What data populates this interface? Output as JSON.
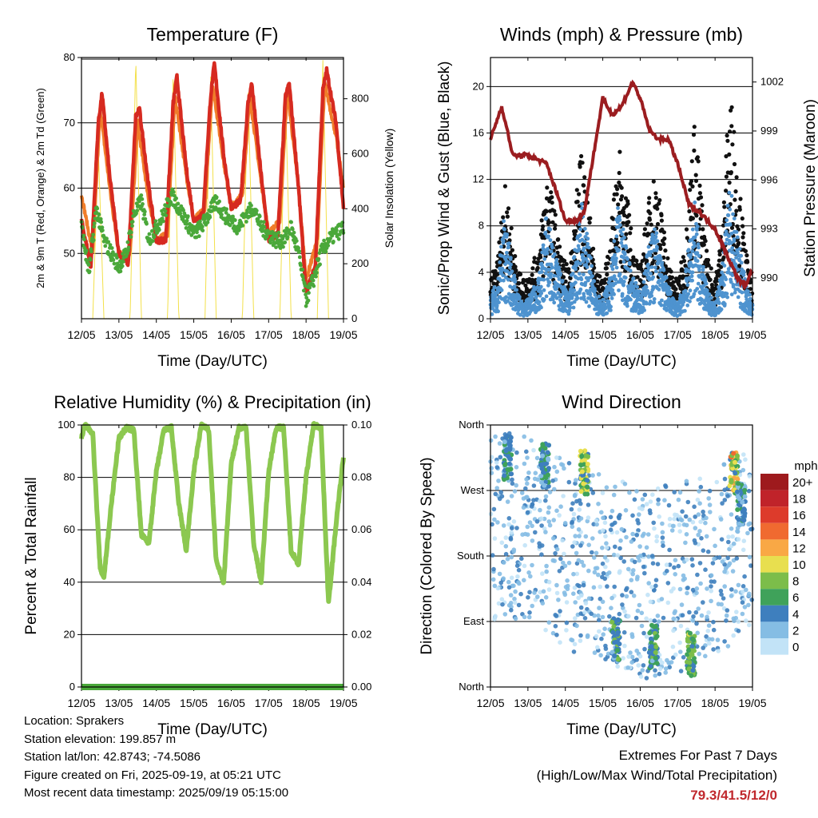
{
  "panels": {
    "temperature": {
      "title": "Temperature (F)",
      "ylabel_left": "2m & 9m T (Red, Orange) & 2m Td (Green)",
      "ylabel_right": "Solar Insolation (Yellow)",
      "xlabel": "Time (Day/UTC)"
    },
    "winds": {
      "title": "Winds (mph) & Pressure (mb)",
      "ylabel_left": "Sonic/Prop Wind & Gust (Blue, Black)",
      "ylabel_right": "Station Pressure (Maroon)",
      "xlabel": "Time (Day/UTC)"
    },
    "humidity": {
      "title": "Relative Humidity (%) & Precipitation (in)",
      "ylabel_left": "Percent & Total Rainfall",
      "xlabel": "Time (Day/UTC)"
    },
    "direction": {
      "title": "Wind Direction",
      "ylabel_left": "Direction (Colored By Speed)",
      "xlabel": "Time (Day/UTC)",
      "legend_title": "mph",
      "legend_labels": [
        "20+",
        "18",
        "16",
        "14",
        "12",
        "10",
        "8",
        "6",
        "4",
        "2",
        "0"
      ],
      "legend_colors": [
        "#9e1a1d",
        "#c0232a",
        "#dd3b2b",
        "#f06a30",
        "#f9a845",
        "#e8df4f",
        "#7cbd4a",
        "#3fa25a",
        "#3e7fbe",
        "#85bde4",
        "#c2e3f7"
      ]
    }
  },
  "info": {
    "location": "Location: Sprakers",
    "elevation": "Station elevation: 199.857 m",
    "latlon": "Station lat/lon: 42.8743; -74.5086",
    "created": "Figure created on Fri, 2025-09-19, at 05:21 UTC",
    "recent": "Most recent data timestamp: 2025/09/19 05:15:00"
  },
  "extremes": {
    "line1": "Extremes For Past 7 Days",
    "line2": "(High/Low/Max Wind/Total Precipitation)",
    "values": "79.3/41.5/12/0"
  },
  "chart_data": [
    {
      "type": "line",
      "title": "Temperature (F)",
      "xlabel": "Time (Day/UTC)",
      "ylabel": "2m & 9m T (Red, Orange) & 2m Td (Green)",
      "y2label": "Solar Insolation (Yellow)",
      "x_ticks": [
        "12/05",
        "13/05",
        "14/05",
        "15/05",
        "16/05",
        "17/05",
        "18/05",
        "19/05"
      ],
      "xlim": [
        0,
        7
      ],
      "ylim": [
        40,
        80
      ],
      "y_ticks": [
        50,
        60,
        70,
        80
      ],
      "y2lim": [
        0,
        950
      ],
      "y2_ticks": [
        0,
        200,
        400,
        600,
        800
      ],
      "grid": true,
      "series": [
        {
          "name": "2m T",
          "color": "#d62a20",
          "x": [
            0,
            0.25,
            0.45,
            0.55,
            0.75,
            1.0,
            1.25,
            1.45,
            1.55,
            1.8,
            2.0,
            2.25,
            2.45,
            2.55,
            2.8,
            3.0,
            3.25,
            3.45,
            3.55,
            3.8,
            4.0,
            4.25,
            4.45,
            4.55,
            4.8,
            5.0,
            5.25,
            5.45,
            5.55,
            5.8,
            6.0,
            6.25,
            6.45,
            6.55,
            6.8,
            7.0
          ],
          "values": [
            55,
            48,
            70,
            74.5,
            62,
            50,
            48.5,
            71,
            72,
            60,
            52,
            52,
            73,
            77,
            63,
            55,
            56,
            74,
            79,
            65,
            57,
            58,
            73,
            76,
            62,
            52,
            53,
            74,
            76,
            60,
            44,
            48,
            75,
            78,
            70,
            57
          ]
        },
        {
          "name": "9m T",
          "color": "#f07d2a",
          "x": [
            0,
            0.3,
            0.5,
            0.8,
            1.0,
            1.3,
            1.5,
            1.8,
            2.0,
            2.3,
            2.5,
            2.8,
            3.0,
            3.3,
            3.5,
            3.8,
            4.0,
            4.3,
            4.5,
            4.8,
            5.0,
            5.3,
            5.5,
            5.8,
            6.0,
            6.3,
            6.5,
            6.8,
            7.0
          ],
          "values": [
            59,
            50,
            72,
            58,
            50,
            50,
            70,
            58,
            52,
            53,
            74,
            62,
            55,
            57,
            76,
            64,
            57,
            59,
            74,
            61,
            53,
            55,
            75,
            60,
            46,
            52,
            76,
            68,
            60
          ]
        },
        {
          "name": "2m Td",
          "color": "#4aa83a",
          "x": [
            0,
            0.2,
            0.4,
            0.6,
            0.8,
            1.0,
            1.2,
            1.4,
            1.6,
            1.8,
            2.0,
            2.2,
            2.4,
            2.6,
            2.8,
            3.0,
            3.2,
            3.4,
            3.6,
            3.8,
            4.0,
            4.2,
            4.4,
            4.6,
            4.8,
            5.0,
            5.2,
            5.4,
            5.6,
            5.8,
            6.0,
            6.2,
            6.4,
            6.6,
            6.8,
            7.0
          ],
          "values": [
            54,
            47,
            57,
            52,
            50,
            48,
            50,
            56,
            58,
            52,
            54,
            56,
            59,
            57,
            55,
            53,
            54,
            56,
            58,
            56,
            55,
            54,
            56,
            57,
            54,
            53,
            52,
            52,
            54,
            50,
            43,
            46,
            50,
            52,
            53,
            54
          ]
        },
        {
          "name": "Solar Insolation",
          "color": "#f3e04a",
          "axis": "y2",
          "x": [
            0.3,
            0.45,
            0.6,
            1.3,
            1.45,
            1.6,
            2.3,
            2.45,
            2.6,
            3.3,
            3.45,
            3.6,
            4.3,
            4.45,
            4.6,
            5.3,
            5.45,
            5.6,
            6.3,
            6.45,
            6.6
          ],
          "values": [
            0,
            620,
            0,
            0,
            950,
            0,
            0,
            900,
            0,
            0,
            880,
            0,
            0,
            850,
            0,
            0,
            820,
            0,
            0,
            940,
            0
          ]
        }
      ]
    },
    {
      "type": "scatter",
      "title": "Winds (mph) & Pressure (mb)",
      "xlabel": "Time (Day/UTC)",
      "ylabel": "Sonic/Prop Wind & Gust (Blue, Black)",
      "y2label": "Station Pressure (Maroon)",
      "x_ticks": [
        "12/05",
        "13/05",
        "14/05",
        "15/05",
        "16/05",
        "17/05",
        "18/05",
        "19/05"
      ],
      "xlim": [
        0,
        7
      ],
      "ylim": [
        0,
        22.5
      ],
      "y_ticks": [
        0,
        4,
        8,
        12,
        16,
        20
      ],
      "y2lim": [
        987.5,
        1003.5
      ],
      "y2_ticks": [
        990,
        993,
        996,
        999,
        1002
      ],
      "grid": true,
      "series": [
        {
          "name": "Wind (Blue)",
          "color": "#4e93cf",
          "x": [
            0,
            0.2,
            0.35,
            0.5,
            0.7,
            0.9,
            1.1,
            1.3,
            1.5,
            1.7,
            1.9,
            2.1,
            2.3,
            2.45,
            2.6,
            2.8,
            3.0,
            3.2,
            3.4,
            3.6,
            3.8,
            4.0,
            4.2,
            4.4,
            4.6,
            4.8,
            5.0,
            5.2,
            5.45,
            5.6,
            5.8,
            6.0,
            6.2,
            6.4,
            6.6,
            6.8,
            7.0
          ],
          "values": [
            1.5,
            3,
            7.5,
            5.5,
            2,
            1,
            2,
            3,
            8,
            5,
            3,
            2,
            6,
            8.5,
            6,
            2,
            1.5,
            3,
            8,
            6,
            3,
            2,
            5,
            7,
            4,
            2,
            1,
            3,
            9,
            5,
            2,
            1,
            4,
            10,
            6,
            3,
            1
          ]
        },
        {
          "name": "Gust (Black)",
          "color": "#111111",
          "x": [
            0,
            0.2,
            0.35,
            0.5,
            0.7,
            0.9,
            1.1,
            1.3,
            1.5,
            1.7,
            1.9,
            2.1,
            2.3,
            2.45,
            2.6,
            2.8,
            3.0,
            3.2,
            3.4,
            3.6,
            3.8,
            4.0,
            4.2,
            4.4,
            4.6,
            4.8,
            5.0,
            5.2,
            5.45,
            5.6,
            5.8,
            6.0,
            6.2,
            6.4,
            6.6,
            6.8,
            7.0
          ],
          "values": [
            3,
            5,
            11,
            9,
            4,
            3,
            4,
            6,
            12,
            9,
            5,
            4,
            10,
            14,
            10,
            4,
            3,
            6,
            14,
            11,
            6,
            4,
            9,
            12,
            8,
            4,
            3,
            6,
            16,
            11,
            5,
            3,
            8,
            19,
            12,
            6,
            2
          ]
        },
        {
          "name": "Station Pressure",
          "color": "#9b1d20",
          "axis": "y2",
          "x": [
            0,
            0.3,
            0.6,
            1.0,
            1.5,
            1.8,
            2.0,
            2.3,
            2.5,
            2.75,
            3.0,
            3.25,
            3.5,
            3.8,
            4.0,
            4.25,
            4.5,
            4.75,
            5.0,
            5.3,
            5.6,
            6.0,
            6.3,
            6.6,
            6.8,
            7.0
          ],
          "values": [
            998.5,
            1000.5,
            997.5,
            997.5,
            997,
            995,
            993.5,
            993.5,
            994,
            997.5,
            1001,
            1000,
            1000.5,
            1002,
            1001,
            999,
            998.5,
            998.5,
            997,
            994.5,
            994,
            993,
            991.5,
            990,
            989.5,
            990.5
          ]
        }
      ]
    },
    {
      "type": "line",
      "title": "Relative Humidity (%) & Precipitation (in)",
      "xlabel": "Time (Day/UTC)",
      "ylabel": "Percent & Total Rainfall",
      "x_ticks": [
        "12/05",
        "13/05",
        "14/05",
        "15/05",
        "16/05",
        "17/05",
        "18/05",
        "19/05"
      ],
      "xlim": [
        0,
        7
      ],
      "ylim": [
        0,
        100
      ],
      "y_ticks": [
        0,
        20,
        40,
        60,
        80,
        100
      ],
      "y2lim": [
        0,
        0.1
      ],
      "y2_ticks": [
        "0.00",
        "0.02",
        "0.04",
        "0.06",
        "0.08",
        "0.10"
      ],
      "grid": true,
      "series": [
        {
          "name": "RH",
          "color": "#8cc850",
          "x": [
            0,
            0.1,
            0.3,
            0.5,
            0.6,
            0.8,
            1.0,
            1.2,
            1.4,
            1.6,
            1.8,
            2.0,
            2.2,
            2.4,
            2.6,
            2.8,
            3.0,
            3.2,
            3.4,
            3.6,
            3.8,
            4.0,
            4.2,
            4.4,
            4.6,
            4.8,
            5.0,
            5.2,
            5.4,
            5.6,
            5.8,
            6.0,
            6.2,
            6.4,
            6.6,
            6.8,
            7.0
          ],
          "values": [
            95,
            100,
            97,
            45,
            42,
            70,
            95,
            99,
            98,
            58,
            55,
            82,
            98,
            99,
            70,
            52,
            82,
            100,
            98,
            48,
            40,
            85,
            99,
            99,
            55,
            40,
            82,
            99,
            99,
            52,
            47,
            80,
            100,
            99,
            32,
            62,
            88
          ]
        },
        {
          "name": "Total Precipitation",
          "color": "#4aa83a",
          "axis": "y2",
          "x": [
            0,
            7
          ],
          "values": [
            0,
            0
          ]
        }
      ]
    },
    {
      "type": "scatter",
      "title": "Wind Direction",
      "xlabel": "Time (Day/UTC)",
      "ylabel": "Direction (Colored By Speed)",
      "x_ticks": [
        "12/05",
        "13/05",
        "14/05",
        "15/05",
        "16/05",
        "17/05",
        "18/05",
        "19/05"
      ],
      "xlim": [
        0,
        7
      ],
      "ylim": [
        0,
        360
      ],
      "y_ticks": [
        "North",
        "East",
        "South",
        "West",
        "North"
      ],
      "legend_title": "mph",
      "legend": [
        "20+",
        "18",
        "16",
        "14",
        "12",
        "10",
        "8",
        "6",
        "4",
        "2",
        "0"
      ],
      "grid": true,
      "series": [
        {
          "name": "Direction",
          "x": [
            0.4,
            0.5,
            0.6,
            0.7,
            1.3,
            1.4,
            1.5,
            2.4,
            2.5,
            2.6,
            3.3,
            3.4,
            3.5,
            4.3,
            4.4,
            5.2,
            5.3,
            5.4,
            6.4,
            6.5,
            6.6,
            6.8,
            1.0,
            2.0,
            3.0,
            4.0,
            5.0,
            6.0
          ],
          "values": [
            330,
            310,
            290,
            280,
            320,
            300,
            285,
            300,
            290,
            275,
            80,
            70,
            60,
            60,
            50,
            70,
            50,
            40,
            310,
            290,
            260,
            220,
            220,
            180,
            170,
            140,
            150,
            170
          ]
        }
      ]
    }
  ]
}
